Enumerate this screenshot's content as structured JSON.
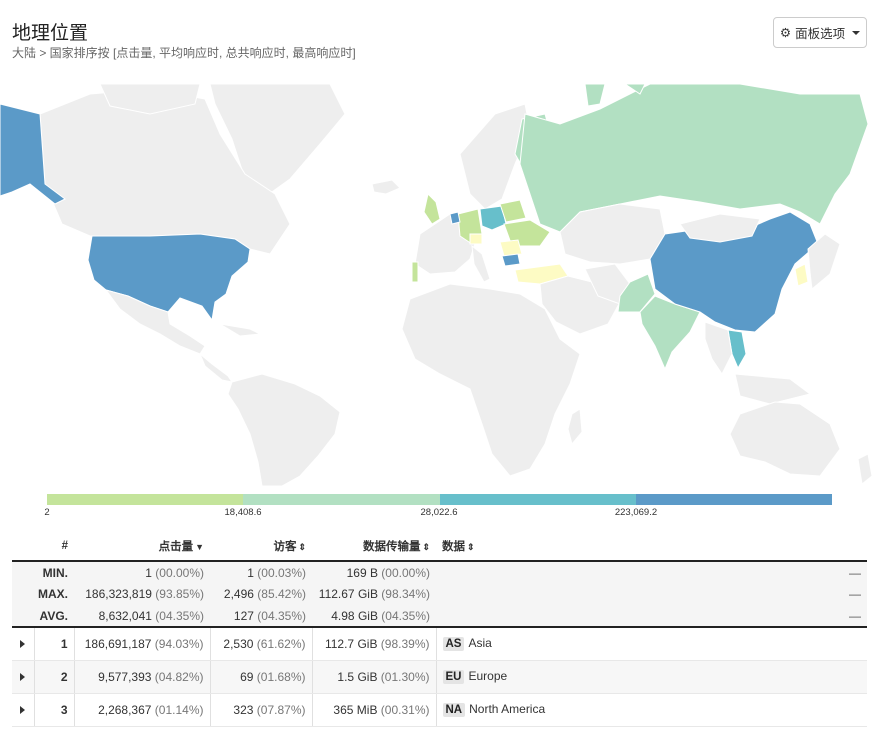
{
  "header": {
    "title": "地理位置",
    "subtitle": "大陆 > 国家排序按 [点击量, 平均响应时, 总共响应时, 最高响应时]",
    "panel_options_label": "面板选项"
  },
  "legend": {
    "colors": [
      "#c4e49b",
      "#b2e0c2",
      "#67bfcb",
      "#5b9ac8"
    ],
    "ticks": [
      "2",
      "18,408.6",
      "28,022.6",
      "223,069.2"
    ]
  },
  "map_colors": {
    "land": "#eeeeee",
    "border": "#ffffff",
    "level1": "#5b9ac8",
    "level2": "#67bfcb",
    "level3": "#b2e0c2",
    "level4": "#c4e49b",
    "level5": "#fdfbc4"
  },
  "table": {
    "headers": {
      "idx": "#",
      "hits": "点击量",
      "visitors": "访客",
      "bandwidth": "数据传输量",
      "data": "数据"
    },
    "summary": [
      {
        "label": "MIN.",
        "hits": "1",
        "hits_pct": "(00.00%)",
        "visitors": "1",
        "visitors_pct": "(00.03%)",
        "bw": "169 B",
        "bw_pct": "(00.00%)",
        "dash": "—"
      },
      {
        "label": "MAX.",
        "hits": "186,323,819",
        "hits_pct": "(93.85%)",
        "visitors": "2,496",
        "visitors_pct": "(85.42%)",
        "bw": "112.67 GiB",
        "bw_pct": "(98.34%)",
        "dash": "—"
      },
      {
        "label": "AVG.",
        "hits": "8,632,041",
        "hits_pct": "(04.35%)",
        "visitors": "127",
        "visitors_pct": "(04.35%)",
        "bw": "4.98 GiB",
        "bw_pct": "(04.35%)",
        "dash": "—"
      }
    ],
    "rows": [
      {
        "idx": "1",
        "hits": "186,691,187",
        "hits_pct": "(94.03%)",
        "visitors": "2,530",
        "visitors_pct": "(61.62%)",
        "bw": "112.7 GiB",
        "bw_pct": "(98.39%)",
        "code": "AS",
        "name": "Asia"
      },
      {
        "idx": "2",
        "hits": "9,577,393",
        "hits_pct": "(04.82%)",
        "visitors": "69",
        "visitors_pct": "(01.68%)",
        "bw": "1.5 GiB",
        "bw_pct": "(01.30%)",
        "code": "EU",
        "name": "Europe"
      },
      {
        "idx": "3",
        "hits": "2,268,367",
        "hits_pct": "(01.14%)",
        "visitors": "323",
        "visitors_pct": "(07.87%)",
        "bw": "365 MiB",
        "bw_pct": "(00.31%)",
        "code": "NA",
        "name": "North America"
      }
    ]
  }
}
